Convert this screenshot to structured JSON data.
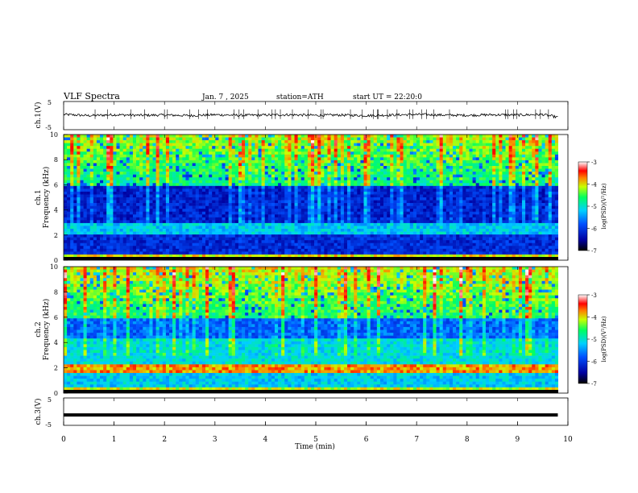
{
  "header": {
    "title": "VLF Spectra",
    "date": "Jan. 7 , 2025",
    "station": "station=ATH",
    "start": "start UT = 22:20:0"
  },
  "chart_data": [
    {
      "type": "line",
      "name": "ch1-waveform",
      "ylabel": "ch.1(V)",
      "ylim": [
        -5,
        5
      ],
      "yticks": [
        "5",
        "-5"
      ],
      "xlim": [
        0,
        10
      ],
      "x": [
        0,
        0.5,
        1,
        1.5,
        2,
        2.5,
        3,
        3.5,
        4,
        4.5,
        5,
        5.5,
        6,
        6.5,
        7,
        7.5,
        8,
        8.5,
        9,
        9.5,
        9.8
      ],
      "y": [
        0.4,
        0.0,
        0.3,
        0.1,
        0.2,
        0.0,
        0.3,
        0.1,
        0.2,
        0.3,
        0.1,
        0.2,
        0.0,
        0.2,
        0.4,
        0.2,
        0.1,
        0.3,
        0.2,
        0.4,
        -0.6
      ]
    },
    {
      "type": "heatmap",
      "name": "ch1-spectrogram",
      "ylabel": "Frequency (kHz)",
      "channel": "ch.1",
      "ylim": [
        0,
        10
      ],
      "yticks": [
        "0",
        "2",
        "4",
        "6",
        "8",
        "10"
      ],
      "xlim": [
        0,
        9.8
      ],
      "colorbar": {
        "label": "log(PSD)(V²/Hz)",
        "ticks": [
          "-3",
          "-4",
          "-5",
          "-6",
          "-7"
        ],
        "range": [
          -7,
          -3
        ]
      }
    },
    {
      "type": "heatmap",
      "name": "ch2-spectrogram",
      "ylabel": "Frequency (kHz)",
      "channel": "ch.2",
      "ylim": [
        0,
        10
      ],
      "yticks": [
        "0",
        "2",
        "4",
        "6",
        "8",
        "10"
      ],
      "xlim": [
        0,
        9.8
      ],
      "colorbar": {
        "label": "log(PSD)(V²/Hz)",
        "ticks": [
          "-3",
          "-4",
          "-5",
          "-6",
          "-7"
        ],
        "range": [
          -7,
          -3
        ]
      }
    },
    {
      "type": "line",
      "name": "ch3-waveform",
      "ylabel": "ch.3(V)",
      "ylim": [
        -5,
        5
      ],
      "yticks": [
        "5",
        "-5"
      ],
      "xlim": [
        0,
        10
      ],
      "x": [
        0,
        9.8
      ],
      "y": [
        -1.2,
        -1.2
      ]
    }
  ],
  "xaxis": {
    "label": "Time (min)",
    "ticks": [
      "0",
      "1",
      "2",
      "3",
      "4",
      "5",
      "6",
      "7",
      "8",
      "9",
      "10"
    ]
  }
}
